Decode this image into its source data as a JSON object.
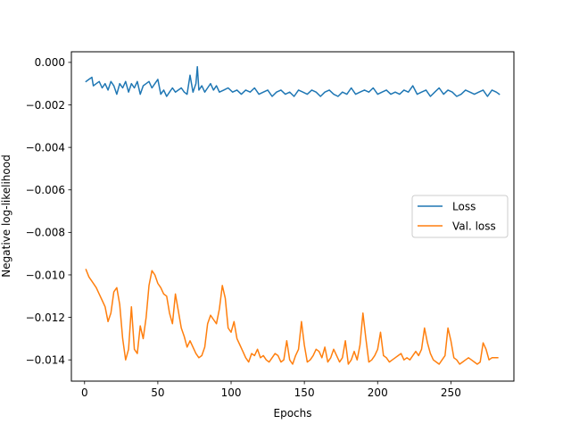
{
  "chart_data": {
    "type": "line",
    "title": "",
    "xlabel": "Epochs",
    "ylabel": "Negative log-likelihood",
    "xlim": [
      -9,
      293
    ],
    "ylim": [
      -0.015,
      0.0005
    ],
    "xticks": [
      0,
      50,
      100,
      150,
      200,
      250
    ],
    "xtick_labels": [
      "0",
      "50",
      "100",
      "150",
      "200",
      "250"
    ],
    "yticks": [
      0.0,
      -0.002,
      -0.004,
      -0.006,
      -0.008,
      -0.01,
      -0.012,
      -0.014
    ],
    "ytick_labels": [
      "0.000",
      "−0.002",
      "−0.004",
      "−0.006",
      "−0.008",
      "−0.010",
      "−0.012",
      "−0.014"
    ],
    "grid": false,
    "legend_position": "center-right",
    "series": [
      {
        "name": "Loss",
        "color": "#1f77b4",
        "x": [
          1,
          3,
          5,
          6,
          8,
          10,
          12,
          14,
          16,
          18,
          20,
          22,
          24,
          26,
          28,
          30,
          32,
          34,
          36,
          38,
          40,
          42,
          44,
          46,
          48,
          50,
          52,
          54,
          56,
          58,
          60,
          62,
          64,
          66,
          68,
          70,
          72,
          74,
          76,
          77,
          78,
          80,
          82,
          84,
          86,
          88,
          90,
          92,
          95,
          98,
          101,
          104,
          107,
          110,
          113,
          116,
          119,
          122,
          125,
          128,
          131,
          134,
          137,
          140,
          143,
          146,
          149,
          152,
          155,
          158,
          161,
          164,
          167,
          170,
          173,
          176,
          179,
          182,
          185,
          188,
          191,
          194,
          197,
          200,
          203,
          206,
          209,
          212,
          215,
          218,
          221,
          224,
          227,
          230,
          233,
          236,
          239,
          242,
          245,
          248,
          251,
          254,
          257,
          260,
          263,
          266,
          269,
          272,
          275,
          278,
          281,
          283
        ],
        "y": [
          -0.0009,
          -0.0008,
          -0.0007,
          -0.0011,
          -0.001,
          -0.0009,
          -0.0012,
          -0.001,
          -0.0013,
          -0.0009,
          -0.0011,
          -0.0015,
          -0.001,
          -0.0012,
          -0.0009,
          -0.0014,
          -0.001,
          -0.0012,
          -0.0009,
          -0.0015,
          -0.0011,
          -0.001,
          -0.0009,
          -0.0012,
          -0.001,
          -0.0008,
          -0.0015,
          -0.0013,
          -0.0016,
          -0.0014,
          -0.0012,
          -0.0014,
          -0.0013,
          -0.0012,
          -0.0014,
          -0.0015,
          -0.0006,
          -0.0014,
          -0.001,
          -0.0002,
          -0.0013,
          -0.0011,
          -0.0014,
          -0.0012,
          -0.001,
          -0.0013,
          -0.0011,
          -0.0014,
          -0.0013,
          -0.0012,
          -0.0014,
          -0.0013,
          -0.0015,
          -0.0013,
          -0.0014,
          -0.0012,
          -0.0015,
          -0.0014,
          -0.0013,
          -0.0016,
          -0.0014,
          -0.0013,
          -0.0015,
          -0.0014,
          -0.0016,
          -0.0013,
          -0.0014,
          -0.0015,
          -0.0013,
          -0.0014,
          -0.0016,
          -0.0014,
          -0.0013,
          -0.0015,
          -0.0016,
          -0.0014,
          -0.0015,
          -0.0012,
          -0.0015,
          -0.0014,
          -0.0013,
          -0.0014,
          -0.0012,
          -0.0015,
          -0.0014,
          -0.0013,
          -0.0015,
          -0.0014,
          -0.0015,
          -0.0013,
          -0.0014,
          -0.0011,
          -0.0015,
          -0.0014,
          -0.0013,
          -0.0016,
          -0.0014,
          -0.0012,
          -0.0015,
          -0.0013,
          -0.0014,
          -0.0016,
          -0.0015,
          -0.0013,
          -0.0014,
          -0.0015,
          -0.0014,
          -0.0013,
          -0.0016,
          -0.0013,
          -0.0014,
          -0.0015
        ]
      },
      {
        "name": "Val. loss",
        "color": "#ff7f0e",
        "x": [
          1,
          3,
          5,
          8,
          10,
          12,
          14,
          16,
          18,
          20,
          22,
          24,
          26,
          28,
          30,
          32,
          34,
          36,
          38,
          40,
          42,
          44,
          46,
          48,
          50,
          52,
          54,
          56,
          58,
          60,
          62,
          64,
          66,
          68,
          70,
          72,
          74,
          76,
          78,
          80,
          82,
          84,
          86,
          88,
          90,
          92,
          94,
          96,
          98,
          100,
          102,
          104,
          106,
          108,
          110,
          112,
          114,
          116,
          118,
          120,
          122,
          124,
          126,
          128,
          130,
          132,
          134,
          136,
          138,
          140,
          142,
          144,
          146,
          148,
          150,
          152,
          154,
          156,
          158,
          160,
          162,
          164,
          166,
          168,
          170,
          172,
          174,
          176,
          178,
          180,
          182,
          184,
          186,
          188,
          190,
          192,
          194,
          196,
          198,
          200,
          202,
          204,
          206,
          208,
          210,
          212,
          214,
          216,
          218,
          220,
          222,
          224,
          226,
          228,
          230,
          232,
          234,
          236,
          238,
          240,
          242,
          244,
          246,
          248,
          250,
          252,
          254,
          256,
          258,
          260,
          262,
          264,
          266,
          268,
          270,
          272,
          274,
          276,
          278,
          280,
          282
        ],
        "y": [
          -0.00975,
          -0.0101,
          -0.0103,
          -0.0106,
          -0.0109,
          -0.0112,
          -0.0115,
          -0.0122,
          -0.0118,
          -0.0108,
          -0.0106,
          -0.0114,
          -0.013,
          -0.014,
          -0.0135,
          -0.0115,
          -0.0135,
          -0.0137,
          -0.0124,
          -0.013,
          -0.012,
          -0.0105,
          -0.0098,
          -0.01,
          -0.0104,
          -0.0106,
          -0.0109,
          -0.011,
          -0.0118,
          -0.0123,
          -0.0109,
          -0.0117,
          -0.0125,
          -0.0129,
          -0.0134,
          -0.0131,
          -0.0134,
          -0.0137,
          -0.0139,
          -0.0138,
          -0.0134,
          -0.0123,
          -0.0119,
          -0.0121,
          -0.0123,
          -0.0116,
          -0.0105,
          -0.0111,
          -0.0125,
          -0.0127,
          -0.0122,
          -0.013,
          -0.0133,
          -0.0136,
          -0.0139,
          -0.0141,
          -0.0137,
          -0.0138,
          -0.0135,
          -0.0139,
          -0.0138,
          -0.014,
          -0.0141,
          -0.0139,
          -0.0137,
          -0.0138,
          -0.0141,
          -0.014,
          -0.0131,
          -0.014,
          -0.0142,
          -0.0138,
          -0.0135,
          -0.0122,
          -0.0133,
          -0.0141,
          -0.014,
          -0.0138,
          -0.0135,
          -0.0136,
          -0.0139,
          -0.0134,
          -0.0141,
          -0.0139,
          -0.0135,
          -0.0138,
          -0.0141,
          -0.0139,
          -0.0131,
          -0.0142,
          -0.014,
          -0.0136,
          -0.014,
          -0.0133,
          -0.0118,
          -0.013,
          -0.0141,
          -0.014,
          -0.0138,
          -0.0135,
          -0.0127,
          -0.0138,
          -0.0139,
          -0.0141,
          -0.014,
          -0.0139,
          -0.0138,
          -0.0137,
          -0.014,
          -0.0139,
          -0.014,
          -0.0138,
          -0.0136,
          -0.0138,
          -0.0135,
          -0.0125,
          -0.0132,
          -0.0137,
          -0.014,
          -0.0141,
          -0.0142,
          -0.014,
          -0.0138,
          -0.0125,
          -0.0131,
          -0.0139,
          -0.014,
          -0.0142,
          -0.0141,
          -0.014,
          -0.0139,
          -0.014,
          -0.0141,
          -0.0142,
          -0.0141,
          -0.0132,
          -0.0135,
          -0.014,
          -0.0139,
          -0.0139,
          -0.0139
        ]
      }
    ]
  }
}
